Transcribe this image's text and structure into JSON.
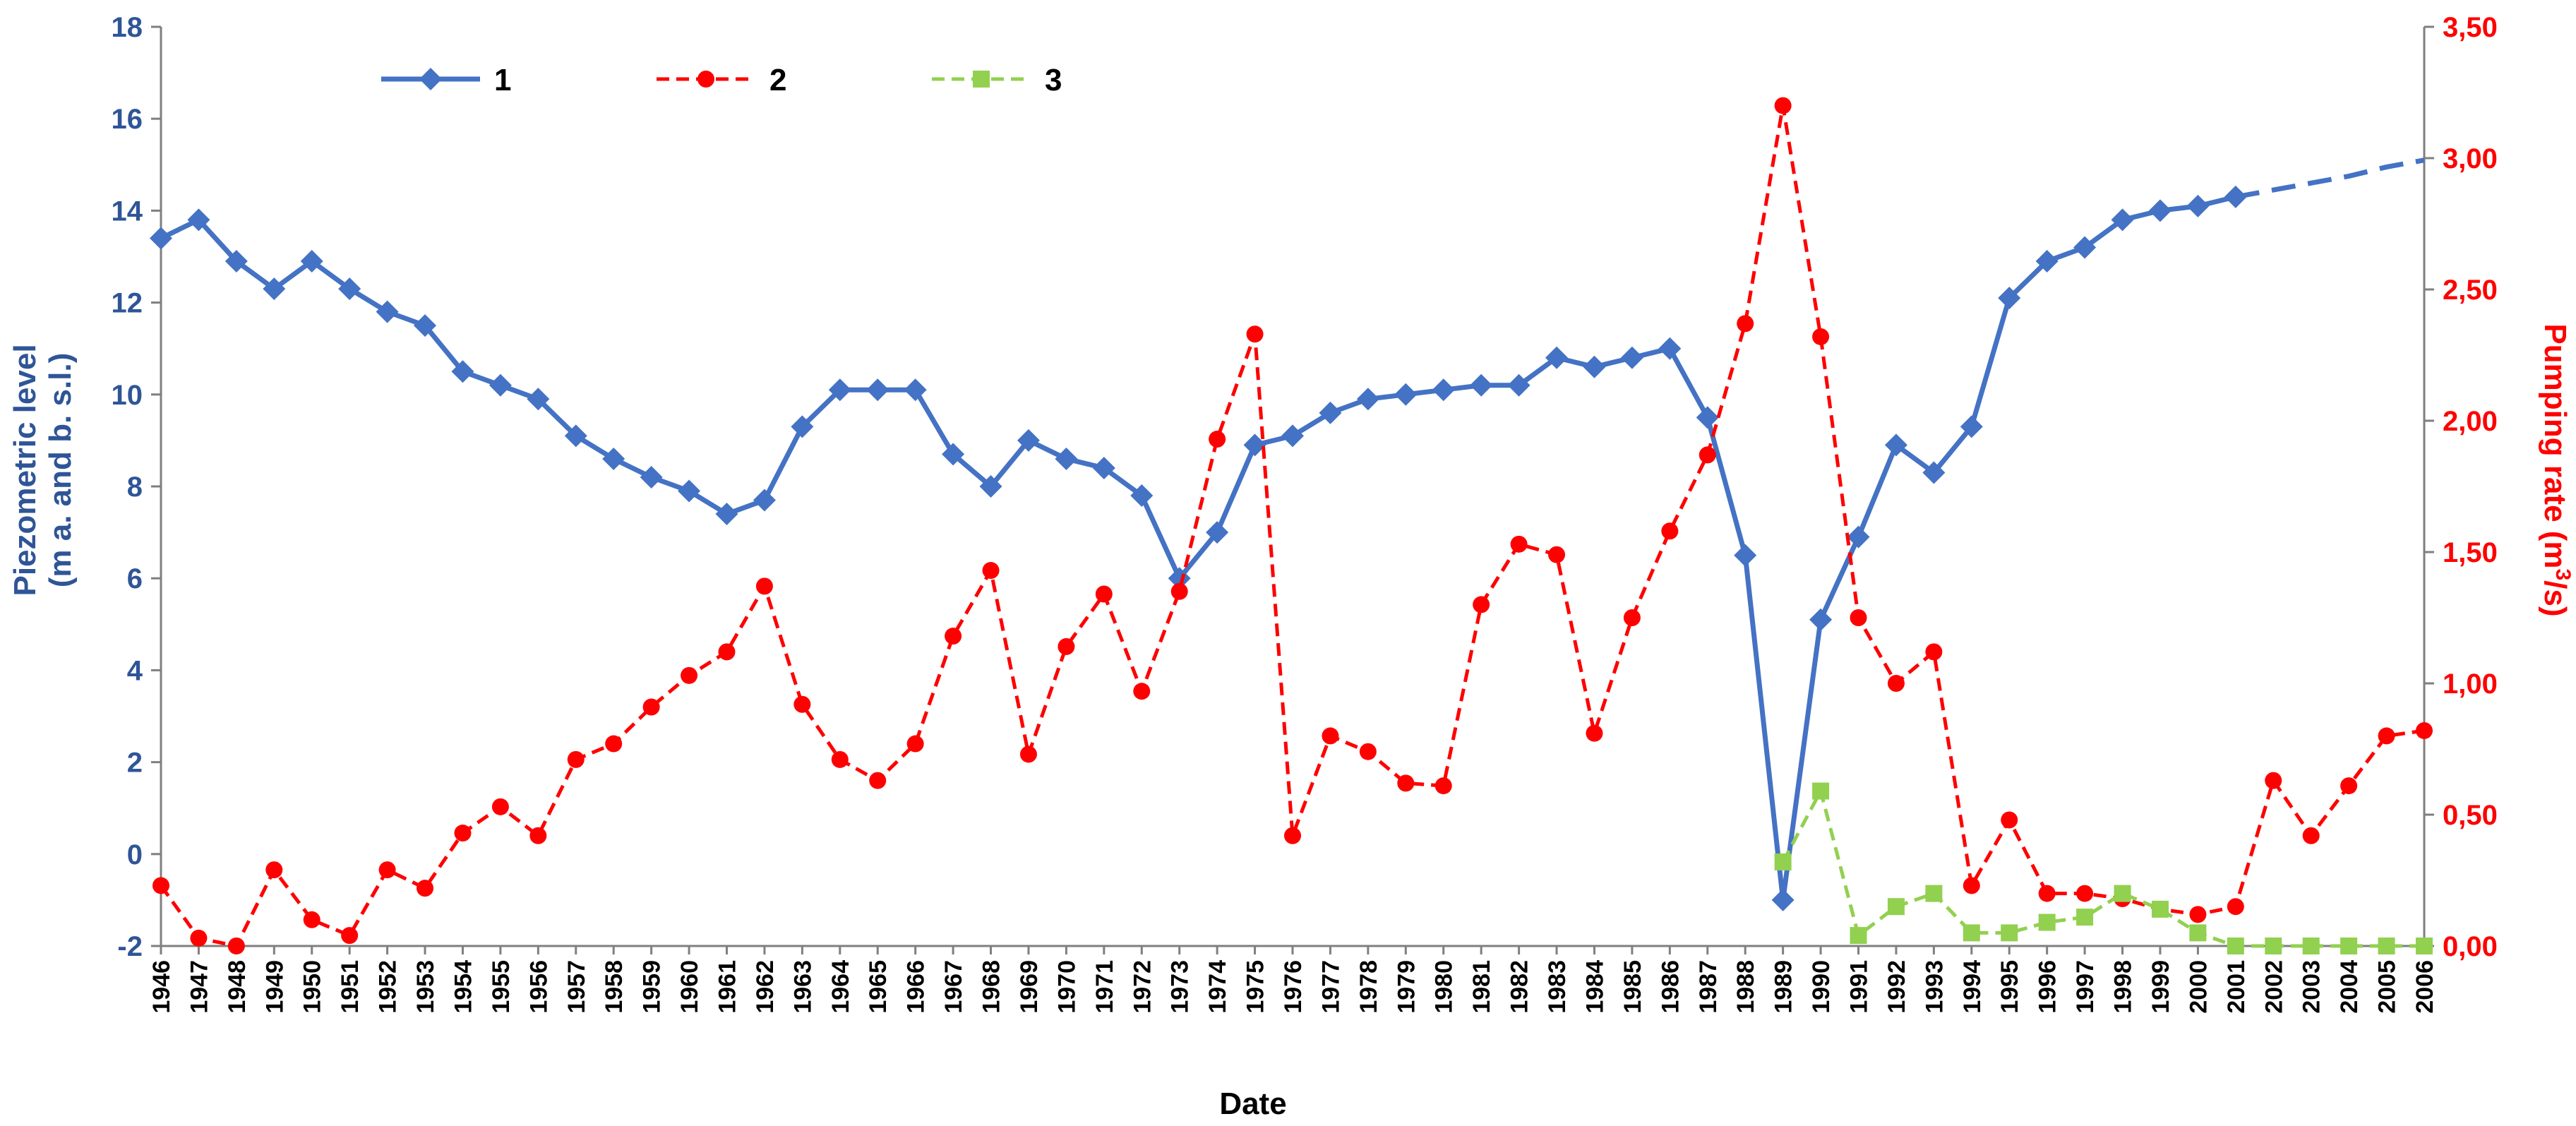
{
  "chart_data": {
    "type": "line",
    "title": "",
    "xlabel": "Date",
    "ylabel_left": "Piezometric level",
    "ylabel_left_units": "(m a. and b. s.l.)",
    "ylabel_right_prefix": "Pumping rate (m",
    "ylabel_right_sup": "3",
    "ylabel_right_suffix": "/s)",
    "ylim_left": [
      -2,
      18
    ],
    "ylim_right": [
      0,
      3.5
    ],
    "left_ticks": [
      -2,
      0,
      2,
      4,
      6,
      8,
      10,
      12,
      14,
      16,
      18
    ],
    "right_ticks": [
      "0,00",
      "0,50",
      "1,00",
      "1,50",
      "2,00",
      "2,50",
      "3,00",
      "3,50"
    ],
    "right_tick_values": [
      0,
      0.5,
      1.0,
      1.5,
      2.0,
      2.5,
      3.0,
      3.5
    ],
    "x": [
      "1946",
      "1947",
      "1948",
      "1949",
      "1950",
      "1951",
      "1952",
      "1953",
      "1954",
      "1955",
      "1956",
      "1957",
      "1958",
      "1959",
      "1960",
      "1961",
      "1962",
      "1963",
      "1964",
      "1965",
      "1966",
      "1967",
      "1968",
      "1969",
      "1970",
      "1971",
      "1972",
      "1973",
      "1974",
      "1975",
      "1976",
      "1977",
      "1978",
      "1979",
      "1980",
      "1981",
      "1982",
      "1983",
      "1984",
      "1985",
      "1986",
      "1987",
      "1988",
      "1989",
      "1990",
      "1991",
      "1992",
      "1993",
      "1994",
      "1995",
      "1996",
      "1997",
      "1998",
      "1999",
      "2000",
      "2001",
      "2002",
      "2003",
      "2004",
      "2005",
      "2006"
    ],
    "legend_position": "top-left",
    "series": [
      {
        "name": "1",
        "axis": "left",
        "style": "solid",
        "marker": "diamond",
        "color": "#4472C4",
        "values": [
          13.4,
          13.8,
          12.9,
          12.3,
          12.9,
          12.3,
          11.8,
          11.5,
          10.5,
          10.2,
          9.9,
          9.1,
          8.6,
          8.2,
          7.9,
          7.4,
          7.7,
          9.3,
          10.1,
          10.1,
          10.1,
          8.7,
          8.0,
          9.0,
          8.6,
          8.4,
          7.8,
          6.0,
          7.0,
          8.9,
          9.1,
          9.6,
          9.9,
          10.0,
          10.1,
          10.2,
          10.2,
          10.8,
          10.6,
          10.8,
          11.0,
          9.5,
          6.5,
          -1.0,
          5.1,
          6.9,
          8.9,
          8.3,
          9.3,
          12.1,
          12.9,
          13.2,
          13.8,
          14.0,
          14.1,
          14.3,
          null,
          null,
          null,
          null,
          null
        ],
        "projection_values": [
          null,
          null,
          null,
          null,
          null,
          null,
          null,
          null,
          null,
          null,
          null,
          null,
          null,
          null,
          null,
          null,
          null,
          null,
          null,
          null,
          null,
          null,
          null,
          null,
          null,
          null,
          null,
          null,
          null,
          null,
          null,
          null,
          null,
          null,
          null,
          null,
          null,
          null,
          null,
          null,
          null,
          null,
          null,
          null,
          null,
          null,
          null,
          null,
          null,
          null,
          null,
          null,
          null,
          null,
          null,
          14.3,
          14.45,
          14.6,
          14.75,
          14.95,
          15.1
        ]
      },
      {
        "name": "2",
        "axis": "right",
        "style": "dashed",
        "marker": "circle",
        "color": "#FF0000",
        "values": [
          0.23,
          0.03,
          0.0,
          0.29,
          0.1,
          0.04,
          0.29,
          0.22,
          0.43,
          0.53,
          0.42,
          0.71,
          0.77,
          0.91,
          1.03,
          1.12,
          1.37,
          0.92,
          0.71,
          0.63,
          0.77,
          1.18,
          1.43,
          0.73,
          1.14,
          1.34,
          0.97,
          1.35,
          1.93,
          2.33,
          0.42,
          0.8,
          0.74,
          0.62,
          0.61,
          1.3,
          1.53,
          1.49,
          0.81,
          1.25,
          1.58,
          1.87,
          2.37,
          3.2,
          2.32,
          1.25,
          1.0,
          1.12,
          0.23,
          0.48,
          0.2,
          0.2,
          0.18,
          0.14,
          0.12,
          0.15,
          0.63,
          0.42,
          0.61,
          0.8,
          0.82
        ]
      },
      {
        "name": "3",
        "axis": "right",
        "style": "dashed",
        "marker": "square",
        "color": "#92D050",
        "values": [
          null,
          null,
          null,
          null,
          null,
          null,
          null,
          null,
          null,
          null,
          null,
          null,
          null,
          null,
          null,
          null,
          null,
          null,
          null,
          null,
          null,
          null,
          null,
          null,
          null,
          null,
          null,
          null,
          null,
          null,
          null,
          null,
          null,
          null,
          null,
          null,
          null,
          null,
          null,
          null,
          null,
          null,
          null,
          0.32,
          0.59,
          0.04,
          0.15,
          0.2,
          0.05,
          0.05,
          0.09,
          0.11,
          0.2,
          0.14,
          0.05,
          0.0,
          0.0,
          0.0,
          0.0,
          0.0,
          0.0
        ]
      }
    ],
    "colors": {
      "left_axis": "#2F5597",
      "right_axis": "#FF0000",
      "axis_line": "#7F7F7F"
    }
  }
}
